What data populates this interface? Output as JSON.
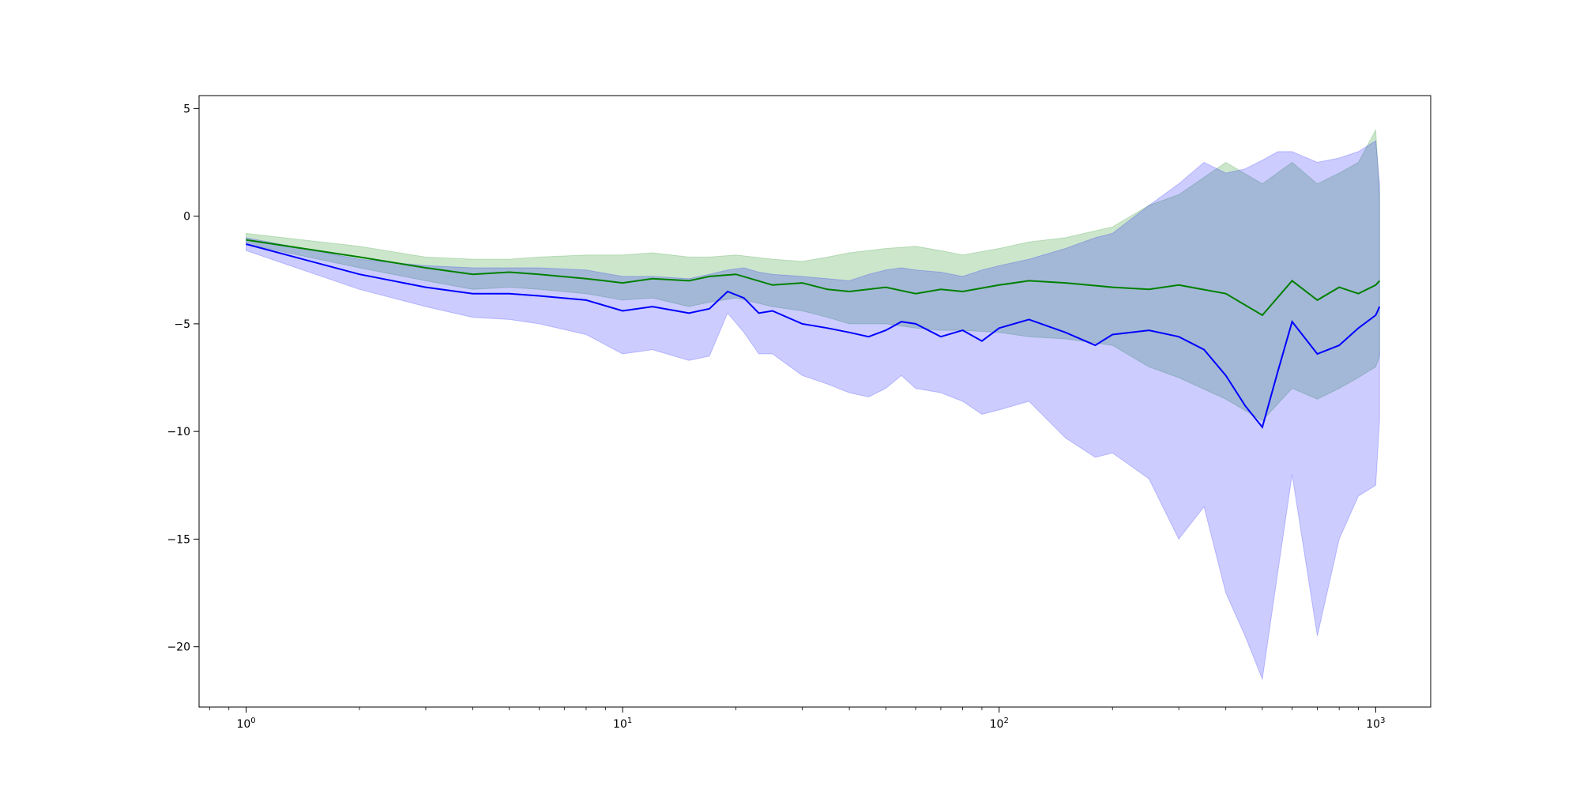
{
  "chart_data": {
    "type": "line",
    "title": "",
    "xlabel": "",
    "ylabel": "",
    "xscale": "log",
    "xlim": [
      0.75,
      1400
    ],
    "ylim": [
      -22.8,
      5.6
    ],
    "grid": false,
    "legend": "none",
    "x_ticks": [
      {
        "value": 1,
        "base": "10",
        "exp": "0"
      },
      {
        "value": 10,
        "base": "10",
        "exp": "1"
      },
      {
        "value": 100,
        "base": "10",
        "exp": "2"
      },
      {
        "value": 1000,
        "base": "10",
        "exp": "3"
      }
    ],
    "y_ticks": [
      {
        "value": 5,
        "label": "5"
      },
      {
        "value": 0,
        "label": "0"
      },
      {
        "value": -5,
        "label": "−5"
      },
      {
        "value": -10,
        "label": "−10"
      },
      {
        "value": -15,
        "label": "−15"
      },
      {
        "value": -20,
        "label": "−20"
      }
    ],
    "series": [
      {
        "color": "#008000",
        "band_color": "#008000",
        "band_opacity": 0.2,
        "x": [
          1,
          2,
          3,
          4,
          5,
          6,
          8,
          10,
          12,
          15,
          17,
          20,
          25,
          30,
          35,
          40,
          50,
          60,
          70,
          80,
          100,
          120,
          150,
          200,
          250,
          300,
          400,
          500,
          600,
          700,
          800,
          900,
          1000,
          1024
        ],
        "y": [
          -1.1,
          -1.9,
          -2.4,
          -2.7,
          -2.6,
          -2.7,
          -2.9,
          -3.1,
          -2.9,
          -3.0,
          -2.8,
          -2.7,
          -3.2,
          -3.1,
          -3.4,
          -3.5,
          -3.3,
          -3.6,
          -3.4,
          -3.5,
          -3.2,
          -3.0,
          -3.1,
          -3.3,
          -3.4,
          -3.2,
          -3.6,
          -4.6,
          -3.0,
          -3.9,
          -3.3,
          -3.6,
          -3.2,
          -3.0
        ],
        "upper": [
          -0.8,
          -1.4,
          -1.9,
          -2.0,
          -2.0,
          -1.9,
          -1.8,
          -1.8,
          -1.7,
          -1.9,
          -1.9,
          -1.8,
          -2.0,
          -2.1,
          -1.9,
          -1.7,
          -1.5,
          -1.4,
          -1.6,
          -1.8,
          -1.5,
          -1.2,
          -1.0,
          -0.5,
          0.5,
          1.0,
          2.5,
          1.5,
          2.5,
          1.5,
          2.0,
          2.5,
          4.0,
          1.0
        ],
        "lower": [
          -1.3,
          -2.4,
          -3.0,
          -3.4,
          -3.3,
          -3.4,
          -3.6,
          -3.9,
          -3.8,
          -4.2,
          -4.0,
          -3.8,
          -4.2,
          -4.4,
          -4.7,
          -5.0,
          -5.0,
          -5.2,
          -5.3,
          -5.3,
          -5.4,
          -5.6,
          -5.7,
          -6.0,
          -7.0,
          -7.5,
          -8.5,
          -9.5,
          -8.0,
          -8.5,
          -8.0,
          -7.5,
          -7.0,
          -6.5
        ]
      },
      {
        "color": "#0000ff",
        "band_color": "#0000ff",
        "band_opacity": 0.2,
        "x": [
          1,
          2,
          3,
          4,
          5,
          6,
          8,
          10,
          12,
          15,
          17,
          19,
          21,
          23,
          25,
          30,
          35,
          40,
          45,
          50,
          55,
          60,
          70,
          80,
          90,
          100,
          120,
          150,
          180,
          200,
          250,
          300,
          350,
          400,
          450,
          500,
          550,
          600,
          700,
          800,
          900,
          1000,
          1024
        ],
        "y": [
          -1.3,
          -2.7,
          -3.3,
          -3.6,
          -3.6,
          -3.7,
          -3.9,
          -4.4,
          -4.2,
          -4.5,
          -4.3,
          -3.5,
          -3.8,
          -4.5,
          -4.4,
          -5.0,
          -5.2,
          -5.4,
          -5.6,
          -5.3,
          -4.9,
          -5.0,
          -5.6,
          -5.3,
          -5.8,
          -5.2,
          -4.8,
          -5.4,
          -6.0,
          -5.5,
          -5.3,
          -5.6,
          -6.2,
          -7.4,
          -8.8,
          -9.8,
          -7.2,
          -4.9,
          -6.4,
          -6.0,
          -5.2,
          -4.6,
          -4.2
        ],
        "upper": [
          -1.0,
          -2.0,
          -2.3,
          -2.4,
          -2.4,
          -2.4,
          -2.5,
          -2.8,
          -2.8,
          -2.9,
          -2.7,
          -2.5,
          -2.4,
          -2.6,
          -2.7,
          -2.8,
          -2.9,
          -3.0,
          -2.7,
          -2.5,
          -2.4,
          -2.5,
          -2.6,
          -2.8,
          -2.5,
          -2.3,
          -2.0,
          -1.5,
          -1.0,
          -0.8,
          0.5,
          1.5,
          2.5,
          2.0,
          2.2,
          2.6,
          3.0,
          3.0,
          2.5,
          2.7,
          3.0,
          3.5,
          1.5
        ],
        "lower": [
          -1.6,
          -3.4,
          -4.2,
          -4.7,
          -4.8,
          -5.0,
          -5.5,
          -6.4,
          -6.2,
          -6.7,
          -6.5,
          -4.5,
          -5.4,
          -6.4,
          -6.4,
          -7.4,
          -7.8,
          -8.2,
          -8.4,
          -8.0,
          -7.4,
          -8.0,
          -8.2,
          -8.6,
          -9.2,
          -9.0,
          -8.6,
          -10.3,
          -11.2,
          -11.0,
          -12.2,
          -15.0,
          -13.5,
          -17.5,
          -19.5,
          -21.5,
          -16.5,
          -12.0,
          -19.5,
          -15.0,
          -13.0,
          -12.5,
          -9.5
        ]
      }
    ]
  }
}
